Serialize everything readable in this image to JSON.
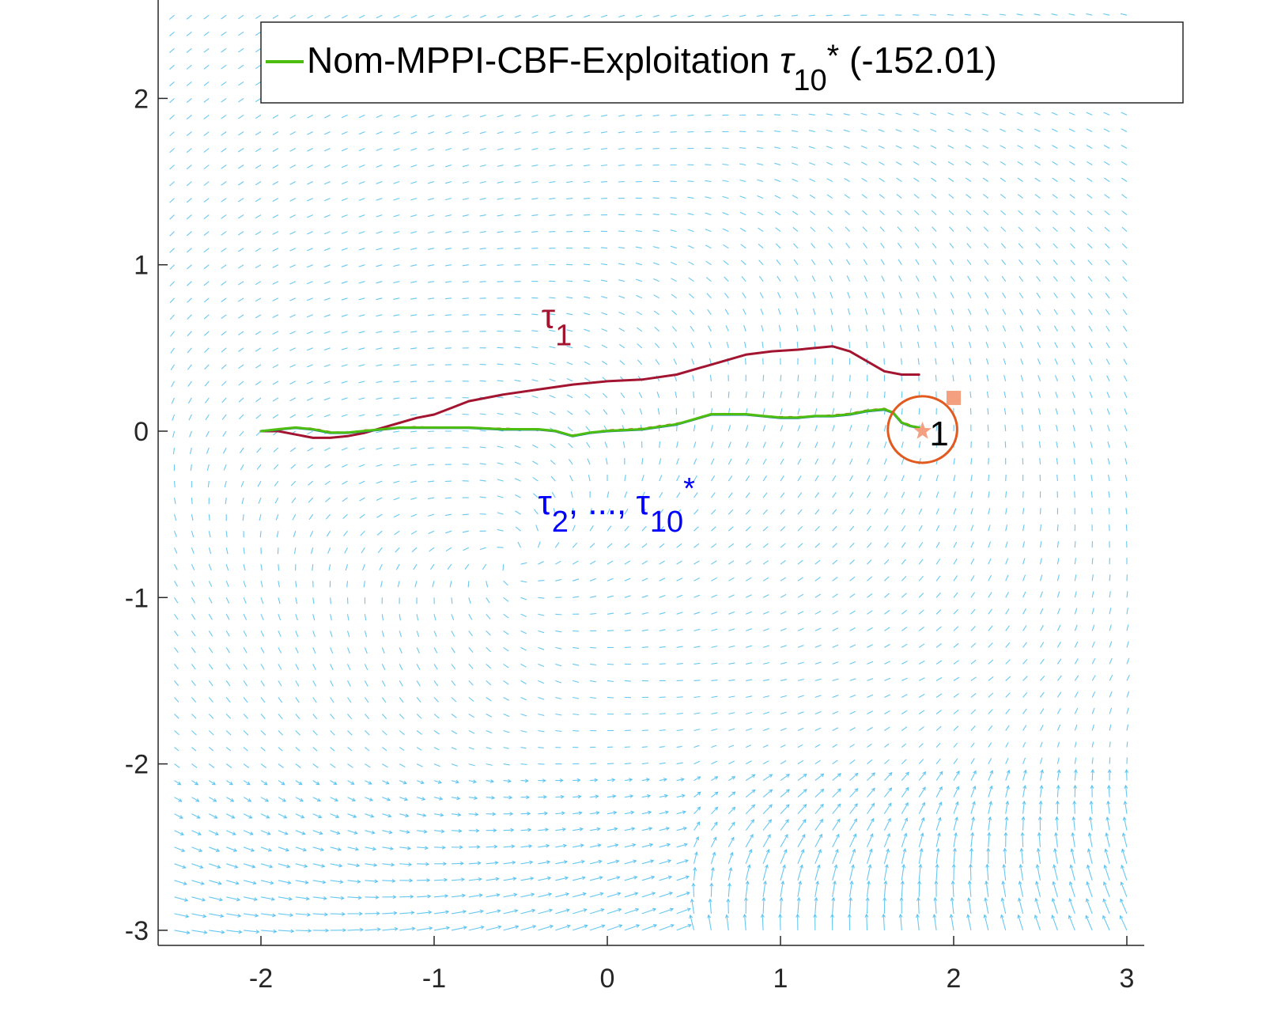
{
  "chart_data": {
    "type": "line",
    "title": "",
    "xlabel": "",
    "ylabel": "",
    "xlim": [
      -2.6,
      3.1
    ],
    "ylim": [
      -3.1,
      2.6
    ],
    "xticks": [
      "-2",
      "-1",
      "0",
      "1",
      "2",
      "3"
    ],
    "yticks": [
      "2",
      "1",
      "0",
      "-1",
      "-2",
      "-3"
    ],
    "xtick_values": [
      -2,
      -1,
      0,
      1,
      2,
      3
    ],
    "ytick_values": [
      2,
      1,
      0,
      -1,
      -2,
      -3
    ],
    "grid": false,
    "legend": {
      "placement": "top",
      "entries": [
        {
          "prefix": "Nom-MPPI-CBF-Exploitation ",
          "symbol": "τ",
          "sub": "10",
          "sup": "*",
          "suffix": " (-152.01)",
          "color": "#4dbd0f"
        }
      ]
    },
    "annotations": {
      "tau1": {
        "symbol": "τ",
        "sub": "1",
        "x": -0.38,
        "y": 0.62,
        "color": "#a2142f"
      },
      "tau_rest": {
        "symbol1": "τ",
        "sub1": "2",
        "middle": ", ..., ",
        "symbol2": "τ",
        "sub2": "10",
        "sup2": "*",
        "x": -0.4,
        "y": -0.5,
        "color": "#0000ff"
      },
      "goal_label": {
        "text": "1",
        "x": 1.86,
        "y": -0.02,
        "color": "#000000"
      }
    },
    "goal": {
      "x": 1.82,
      "y": 0.01,
      "radius": 0.2,
      "color": "#e15a20"
    },
    "markers": [
      {
        "x": 2.0,
        "y": 0.2,
        "shape": "square",
        "color": "#f4a080"
      },
      {
        "x": 1.82,
        "y": 0.0,
        "shape": "star",
        "color": "#f4a080"
      }
    ],
    "series": [
      {
        "color": "#a2142f",
        "x": [
          -2.0,
          -1.9,
          -1.8,
          -1.7,
          -1.6,
          -1.5,
          -1.4,
          -1.3,
          -1.2,
          -1.1,
          -1.0,
          -0.9,
          -0.8,
          -0.6,
          -0.4,
          -0.2,
          0.0,
          0.2,
          0.4,
          0.6,
          0.8,
          0.95,
          1.1,
          1.3,
          1.4,
          1.5,
          1.6,
          1.7,
          1.8
        ],
        "y": [
          0.0,
          0.0,
          -0.02,
          -0.04,
          -0.04,
          -0.03,
          -0.01,
          0.02,
          0.05,
          0.08,
          0.1,
          0.14,
          0.18,
          0.22,
          0.25,
          0.28,
          0.3,
          0.31,
          0.34,
          0.4,
          0.46,
          0.48,
          0.49,
          0.51,
          0.48,
          0.42,
          0.36,
          0.34,
          0.34
        ]
      },
      {
        "color": "#0072bd",
        "x": [
          -2.0,
          -1.9,
          -1.8,
          -1.7,
          -1.6,
          -1.5,
          -1.4,
          -1.3,
          -1.2,
          -1.1,
          -1.0,
          -0.8,
          -0.6,
          -0.4,
          -0.3,
          -0.2,
          -0.1,
          0.0,
          0.2,
          0.4,
          0.5,
          0.6,
          0.7,
          0.8,
          0.9,
          1.0,
          1.1,
          1.2,
          1.3,
          1.4,
          1.5,
          1.6,
          1.65,
          1.7,
          1.75,
          1.8
        ],
        "y": [
          0.0,
          0.01,
          0.02,
          0.01,
          -0.01,
          -0.01,
          0.0,
          0.01,
          0.02,
          0.02,
          0.02,
          0.02,
          0.01,
          0.01,
          0.0,
          -0.03,
          -0.01,
          0.0,
          0.01,
          0.04,
          0.07,
          0.1,
          0.1,
          0.1,
          0.09,
          0.08,
          0.08,
          0.09,
          0.09,
          0.1,
          0.12,
          0.13,
          0.11,
          0.05,
          0.03,
          0.02
        ]
      },
      {
        "color": "#d95319",
        "x": [
          -2.0,
          -1.9,
          -1.8,
          -1.7,
          -1.6,
          -1.5,
          -1.4,
          -1.3,
          -1.2,
          -1.1,
          -1.0,
          -0.8,
          -0.6,
          -0.4,
          -0.3,
          -0.2,
          -0.1,
          0.0,
          0.2,
          0.4,
          0.5,
          0.6,
          0.7,
          0.8,
          0.9,
          1.0,
          1.1,
          1.2,
          1.3,
          1.4,
          1.5,
          1.6,
          1.65,
          1.7,
          1.75,
          1.8
        ],
        "y": [
          0.0,
          0.01,
          0.02,
          0.015,
          -0.005,
          -0.01,
          0.005,
          0.01,
          0.02,
          0.025,
          0.02,
          0.02,
          0.015,
          0.01,
          0.0,
          -0.025,
          -0.01,
          0.005,
          0.015,
          0.045,
          0.07,
          0.1,
          0.105,
          0.1,
          0.09,
          0.085,
          0.085,
          0.09,
          0.095,
          0.105,
          0.125,
          0.135,
          0.115,
          0.055,
          0.035,
          0.02
        ]
      },
      {
        "color": "#4dbd0f",
        "x": [
          -2.0,
          -1.9,
          -1.8,
          -1.7,
          -1.6,
          -1.5,
          -1.4,
          -1.3,
          -1.2,
          -1.1,
          -1.0,
          -0.8,
          -0.6,
          -0.4,
          -0.3,
          -0.2,
          -0.1,
          0.0,
          0.2,
          0.4,
          0.5,
          0.6,
          0.7,
          0.8,
          0.9,
          1.0,
          1.1,
          1.2,
          1.3,
          1.4,
          1.5,
          1.6,
          1.65,
          1.7,
          1.75,
          1.8
        ],
        "y": [
          0.0,
          0.012,
          0.022,
          0.012,
          -0.008,
          -0.008,
          0.002,
          0.012,
          0.022,
          0.022,
          0.022,
          0.022,
          0.012,
          0.012,
          0.002,
          -0.028,
          -0.008,
          0.002,
          0.012,
          0.042,
          0.072,
          0.102,
          0.102,
          0.102,
          0.092,
          0.082,
          0.082,
          0.092,
          0.092,
          0.102,
          0.122,
          0.132,
          0.112,
          0.052,
          0.032,
          0.022
        ]
      }
    ],
    "quiver": {
      "color": "#4dbeee",
      "description": "vector field background"
    }
  }
}
